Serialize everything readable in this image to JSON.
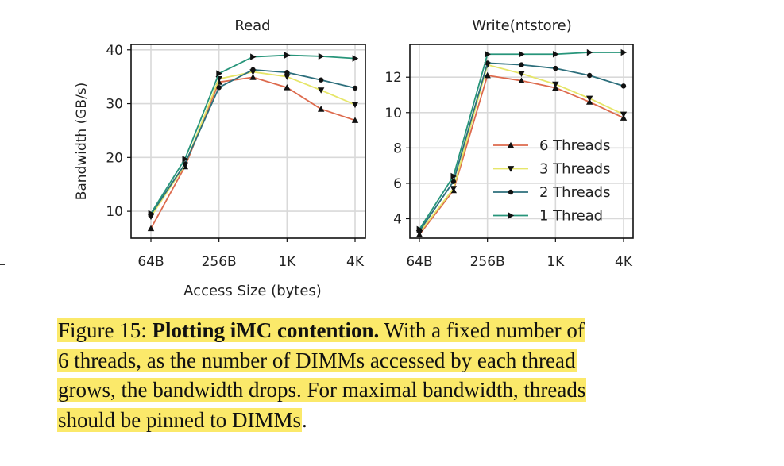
{
  "chart_data": [
    {
      "type": "line",
      "title": "Read",
      "xlabel": "Access Size (bytes)",
      "ylabel": "Bandwidth (GB/s)",
      "x_scale": "log2",
      "x": [
        64,
        128,
        256,
        512,
        1024,
        2048,
        4096
      ],
      "xticks": [
        64,
        256,
        1024,
        4096
      ],
      "xtick_labels": [
        "64B",
        "256B",
        "1K",
        "4K"
      ],
      "ylim": [
        5,
        41
      ],
      "yticks": [
        10,
        20,
        30,
        40
      ],
      "ytick_labels": [
        "10",
        "20",
        "30",
        "40"
      ],
      "grid": true,
      "series": [
        {
          "name": "6 Threads",
          "color": "#dd6a4d",
          "marker": "triangle-up",
          "values": [
            6.8,
            18.3,
            34.0,
            34.9,
            33.0,
            29.0,
            26.9
          ]
        },
        {
          "name": "3 Threads",
          "color": "#e6e66a",
          "marker": "triangle-down",
          "values": [
            9.0,
            18.6,
            34.6,
            35.9,
            35.0,
            32.5,
            29.8
          ]
        },
        {
          "name": "2 Threads",
          "color": "#2d6f7c",
          "marker": "circle",
          "values": [
            9.4,
            18.8,
            33.0,
            36.3,
            35.8,
            34.4,
            32.9
          ]
        },
        {
          "name": "1 Thread",
          "color": "#27957a",
          "marker": "triangle-right",
          "values": [
            9.6,
            19.7,
            35.6,
            38.7,
            39.0,
            38.8,
            38.4
          ]
        }
      ]
    },
    {
      "type": "line",
      "title": "Write(ntstore)",
      "x_scale": "log2",
      "x": [
        64,
        128,
        256,
        512,
        1024,
        2048,
        4096
      ],
      "xticks": [
        64,
        256,
        1024,
        4096
      ],
      "xtick_labels": [
        "64B",
        "256B",
        "1K",
        "4K"
      ],
      "ylim": [
        2.9,
        13.85
      ],
      "yticks": [
        4,
        6,
        8,
        10,
        12
      ],
      "ytick_labels": [
        "4",
        "6",
        "8",
        "10",
        "12"
      ],
      "grid": true,
      "legend": "center-right",
      "series": [
        {
          "name": "6 Threads",
          "color": "#dd6a4d",
          "marker": "triangle-up",
          "values": [
            3.1,
            5.6,
            12.1,
            11.8,
            11.4,
            10.6,
            9.7
          ]
        },
        {
          "name": "3 Threads",
          "color": "#e6e66a",
          "marker": "triangle-down",
          "values": [
            3.2,
            5.7,
            12.7,
            12.2,
            11.6,
            10.8,
            9.9
          ]
        },
        {
          "name": "2 Threads",
          "color": "#2d6f7c",
          "marker": "circle",
          "values": [
            3.3,
            6.1,
            12.8,
            12.7,
            12.5,
            12.1,
            11.5
          ]
        },
        {
          "name": "1 Thread",
          "color": "#27957a",
          "marker": "triangle-right",
          "values": [
            3.4,
            6.4,
            13.3,
            13.3,
            13.3,
            13.4,
            13.4
          ]
        }
      ]
    }
  ],
  "caption": {
    "label": "Figure 15:",
    "title": "Plotting iMC contention.",
    "line1_rest": "With a fixed number of",
    "line2": "6 threads, as the number of DIMMs accessed by each thread",
    "line3": "grows, the bandwidth drops. For maximal bandwidth, threads",
    "line4": "should be pinned to DIMMs",
    "end": "."
  }
}
